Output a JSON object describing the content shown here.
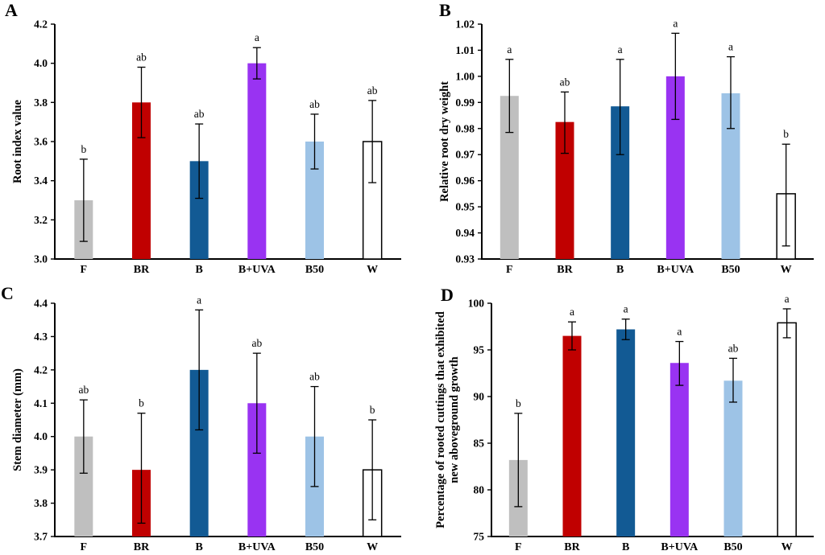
{
  "figure": {
    "background": "#ffffff",
    "categories": [
      "F",
      "BR",
      "B",
      "B+UVA",
      "B50",
      "W"
    ],
    "bar_colors": [
      "#BFBFBF",
      "#C00000",
      "#125A94",
      "#9933F2",
      "#9DC3E6",
      "#FFFFFF"
    ],
    "bar_outline_color": "#000000",
    "error_bar_color": "#000000",
    "axis_color": "#000000"
  },
  "chart_data": [
    {
      "panel": "A",
      "type": "bar",
      "title": "",
      "xlabel": "",
      "ylabel": [
        "Root index value"
      ],
      "ylim": [
        3.0,
        4.2
      ],
      "yticks": [
        3.0,
        3.2,
        3.4,
        3.6,
        3.8,
        4.0,
        4.2
      ],
      "ytick_labels": [
        "3.0",
        "3.2",
        "3.4",
        "3.6",
        "3.8",
        "4.0",
        "4.2"
      ],
      "categories": [
        "F",
        "BR",
        "B",
        "B+UVA",
        "B50",
        "W"
      ],
      "values": [
        3.3,
        3.8,
        3.5,
        4.0,
        3.6,
        3.6
      ],
      "error_low": [
        3.09,
        3.62,
        3.31,
        3.92,
        3.46,
        3.39
      ],
      "error_high": [
        3.51,
        3.98,
        3.69,
        4.08,
        3.74,
        3.81
      ],
      "sig_letters": [
        "b",
        "ab",
        "ab",
        "a",
        "ab",
        "ab"
      ],
      "bar_colors": [
        "#BFBFBF",
        "#C00000",
        "#125A94",
        "#9933F2",
        "#9DC3E6",
        "#FFFFFF"
      ],
      "bar_strokes": [
        "none",
        "none",
        "none",
        "none",
        "none",
        "#000000"
      ],
      "grid": false,
      "legend": null
    },
    {
      "panel": "B",
      "type": "bar",
      "title": "",
      "xlabel": "",
      "ylabel": [
        "Relative root dry weight"
      ],
      "ylim": [
        0.93,
        1.02
      ],
      "yticks": [
        0.93,
        0.94,
        0.95,
        0.96,
        0.97,
        0.98,
        0.99,
        1.0,
        1.01,
        1.02
      ],
      "ytick_labels": [
        "0.93",
        "0.94",
        "0.95",
        "0.96",
        "0.97",
        "0.98",
        "0.99",
        "1.00",
        "1.01",
        "1.02"
      ],
      "categories": [
        "F",
        "BR",
        "B",
        "B+UVA",
        "B50",
        "W"
      ],
      "values": [
        0.9925,
        0.9825,
        0.9885,
        1.0,
        0.9935,
        0.955
      ],
      "error_low": [
        0.9785,
        0.9705,
        0.97,
        0.9835,
        0.98,
        0.935
      ],
      "error_high": [
        1.0065,
        0.994,
        1.0065,
        1.0165,
        1.0075,
        0.974
      ],
      "sig_letters": [
        "a",
        "ab",
        "a",
        "a",
        "a",
        "b"
      ],
      "bar_colors": [
        "#BFBFBF",
        "#C00000",
        "#125A94",
        "#9933F2",
        "#9DC3E6",
        "#FFFFFF"
      ],
      "bar_strokes": [
        "none",
        "none",
        "none",
        "none",
        "none",
        "#000000"
      ],
      "grid": false,
      "legend": null
    },
    {
      "panel": "C",
      "type": "bar",
      "title": "",
      "xlabel": "",
      "ylabel": [
        "Stem diameter (mm)"
      ],
      "ylim": [
        3.7,
        4.4
      ],
      "yticks": [
        3.7,
        3.8,
        3.9,
        4.0,
        4.1,
        4.2,
        4.3,
        4.4
      ],
      "ytick_labels": [
        "3.7",
        "3.8",
        "3.9",
        "4.0",
        "4.1",
        "4.2",
        "4.3",
        "4.4"
      ],
      "categories": [
        "F",
        "BR",
        "B",
        "B+UVA",
        "B50",
        "W"
      ],
      "values": [
        4.0,
        3.9,
        4.2,
        4.1,
        4.0,
        3.9
      ],
      "error_low": [
        3.89,
        3.74,
        4.02,
        3.95,
        3.85,
        3.75
      ],
      "error_high": [
        4.11,
        4.07,
        4.38,
        4.25,
        4.15,
        4.05
      ],
      "sig_letters": [
        "ab",
        "b",
        "a",
        "ab",
        "ab",
        "b"
      ],
      "bar_colors": [
        "#BFBFBF",
        "#C00000",
        "#125A94",
        "#9933F2",
        "#9DC3E6",
        "#FFFFFF"
      ],
      "bar_strokes": [
        "none",
        "none",
        "none",
        "none",
        "none",
        "#000000"
      ],
      "grid": false,
      "legend": null
    },
    {
      "panel": "D",
      "type": "bar",
      "title": "",
      "xlabel": "",
      "ylabel": [
        "Percentage of rooted cuttings that exhibited",
        "new aboveground growth"
      ],
      "ylim": [
        75,
        100
      ],
      "yticks": [
        75,
        80,
        85,
        90,
        95,
        100
      ],
      "ytick_labels": [
        "75",
        "80",
        "85",
        "90",
        "95",
        "100"
      ],
      "categories": [
        "F",
        "BR",
        "B",
        "B+UVA",
        "B50",
        "W"
      ],
      "values": [
        83.2,
        96.5,
        97.2,
        93.6,
        91.7,
        97.9
      ],
      "error_low": [
        78.2,
        95.0,
        96.1,
        91.2,
        89.4,
        96.3
      ],
      "error_high": [
        88.2,
        98.0,
        98.3,
        95.9,
        94.1,
        99.4
      ],
      "sig_letters": [
        "b",
        "a",
        "a",
        "a",
        "ab",
        "a"
      ],
      "bar_colors": [
        "#BFBFBF",
        "#C00000",
        "#125A94",
        "#9933F2",
        "#9DC3E6",
        "#FFFFFF"
      ],
      "bar_strokes": [
        "none",
        "none",
        "none",
        "none",
        "none",
        "#000000"
      ],
      "grid": false,
      "legend": null
    }
  ]
}
